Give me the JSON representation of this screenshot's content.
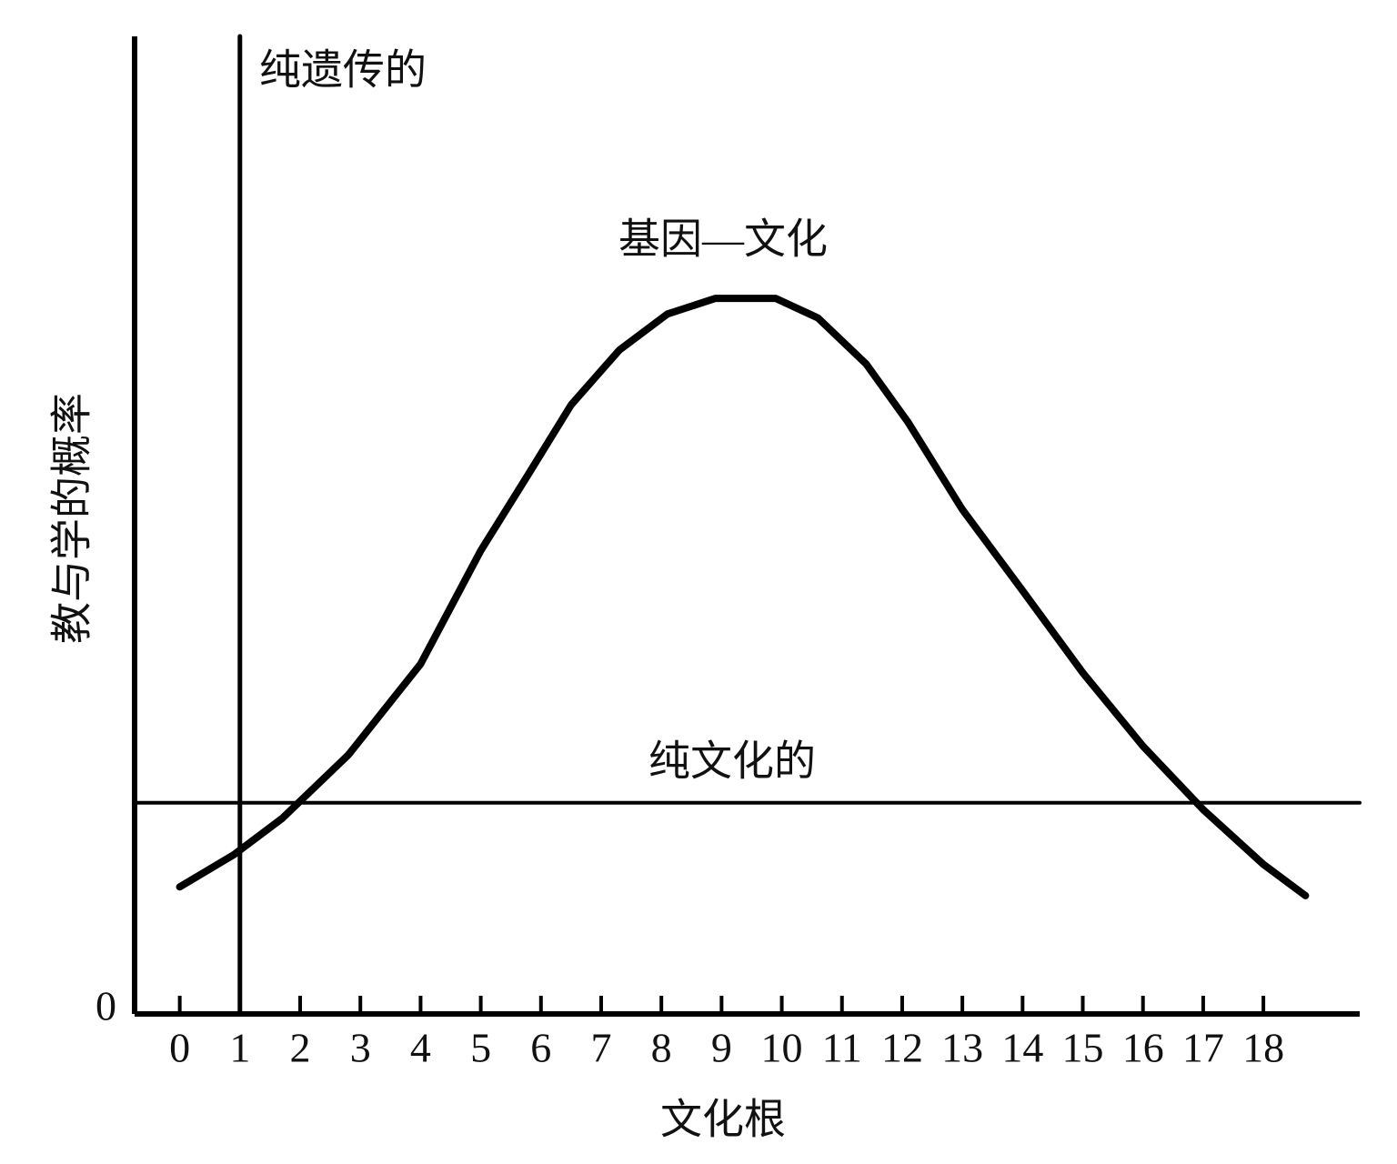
{
  "chart_data": {
    "type": "line",
    "xlabel": "文化根",
    "ylabel": "教与学的概率",
    "xlim": [
      -0.75,
      19.6
    ],
    "ylim": [
      0,
      100
    ],
    "xticks": [
      0,
      1,
      2,
      3,
      4,
      5,
      6,
      7,
      8,
      9,
      10,
      11,
      12,
      13,
      14,
      15,
      16,
      17,
      18
    ],
    "yticks": [
      0
    ],
    "grid": false,
    "series": [
      {
        "name": "纯遗传的",
        "color": "#000000",
        "x": [
          1,
          1
        ],
        "values": [
          0,
          100
        ]
      },
      {
        "name": "基因—文化",
        "color": "#000000",
        "x": [
          0,
          0.9,
          1.7,
          2.8,
          4.0,
          5.0,
          5.8,
          6.5,
          7.3,
          8.1,
          8.9,
          9.9,
          10.6,
          11.4,
          12.1,
          13.0,
          14.0,
          15.0,
          16.0,
          17.0,
          18.0,
          18.7
        ],
        "values": [
          13.0,
          16.3,
          20.0,
          26.5,
          35.8,
          47.4,
          55.3,
          62.3,
          67.9,
          71.6,
          73.2,
          73.2,
          71.2,
          66.5,
          60.5,
          51.6,
          43.3,
          34.9,
          27.4,
          20.9,
          15.3,
          12.1
        ]
      },
      {
        "name": "纯文化的",
        "color": "#000000",
        "x": [
          -0.75,
          19.6
        ],
        "values": [
          21.6,
          21.6
        ]
      }
    ]
  }
}
